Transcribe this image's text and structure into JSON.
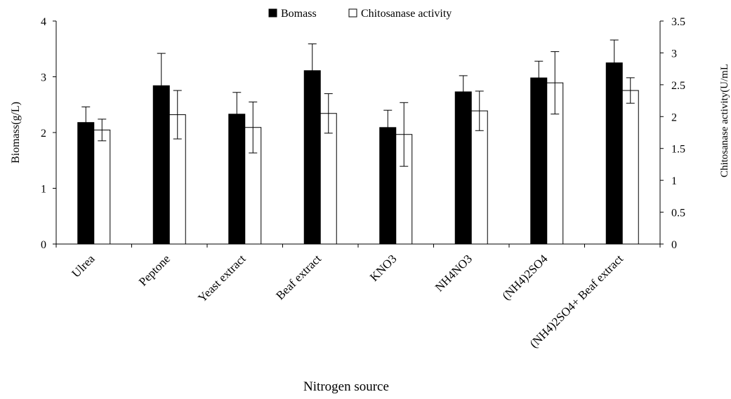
{
  "chart_data": {
    "type": "bar",
    "xlabel": "Nitrogen source",
    "ylabel_left": "Biomass(g/L)",
    "ylabel_right": "Chitosanase activity(U/mL",
    "categories": [
      "Ulrea",
      "Peptone",
      "Yeast extract",
      "Beaf extract",
      "KNO3",
      "NH4NO3",
      "(NH4)2SO4",
      "(NH4)2SO4+ Beaf extract"
    ],
    "ylim_left": [
      0,
      4
    ],
    "ylim_right": [
      0,
      3.5
    ],
    "yticks_left": [
      "0",
      "1",
      "2",
      "3",
      "4"
    ],
    "yticks_right": [
      "0",
      "0.5",
      "1",
      "1.5",
      "2",
      "2.5",
      "3",
      "3.5"
    ],
    "legend_position": "top",
    "series": [
      {
        "name": "Bomass",
        "axis": "left",
        "fill": "#000000",
        "values": [
          2.18,
          2.84,
          2.33,
          3.11,
          2.09,
          2.73,
          2.98,
          3.25
        ],
        "errors": [
          0.28,
          0.58,
          0.39,
          0.48,
          0.31,
          0.29,
          0.3,
          0.41
        ]
      },
      {
        "name": "Chitosanase activity",
        "axis": "right",
        "fill": "#ffffff",
        "values": [
          1.79,
          2.03,
          1.83,
          2.05,
          1.72,
          2.09,
          2.53,
          2.41
        ],
        "errors": [
          0.17,
          0.38,
          0.4,
          0.31,
          0.5,
          0.31,
          0.49,
          0.2
        ]
      }
    ]
  }
}
